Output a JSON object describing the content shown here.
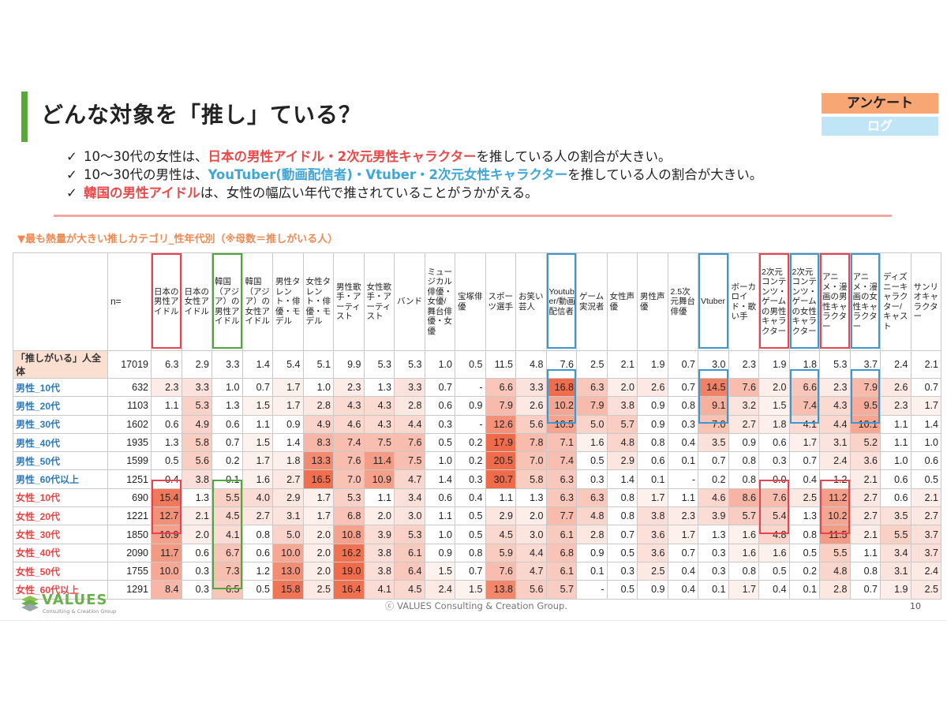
{
  "title": "どんな対象を「推し」ている？",
  "tags": {
    "primary": "アンケート",
    "secondary": "ログ"
  },
  "bullets": [
    {
      "check": "✓",
      "parts": [
        {
          "text": "10～30代の女性は、",
          "style": ""
        },
        {
          "text": "日本の男性アイドル・2次元男性キャラクター",
          "style": "red"
        },
        {
          "text": "を推している人の割合が大きい。",
          "style": ""
        }
      ]
    },
    {
      "check": "✓",
      "parts": [
        {
          "text": "10～30代の男性は、",
          "style": ""
        },
        {
          "text": "YouTuber(動画配信者)・Vtuber・2次元女性キャラクター",
          "style": "blue"
        },
        {
          "text": "を推している人の割合が大きい。",
          "style": ""
        }
      ]
    },
    {
      "check": "✓",
      "parts": [
        {
          "text": "韓国の男性アイドル",
          "style": "red"
        },
        {
          "text": "は、女性の幅広い年代で推されていることがうかがえる。",
          "style": ""
        }
      ]
    }
  ],
  "subtitle": "▼最も熱量が大きい推しカテゴリ_性年代別（※母数＝推しがいる人）",
  "table": {
    "n_label": "n=",
    "columns": [
      "日本の男性アイドル",
      "日本の女性アイドル",
      "韓国（アジア）の男性アイドル",
      "韓国（アジア）の女性アイドル",
      "男性タレント・俳優・モデル",
      "女性タレント・俳優・モデル",
      "男性歌手・アーティスト",
      "女性歌手・アーティスト",
      "バンド",
      "ミュージカル俳優・女優/舞台俳優・女優",
      "宝塚俳優",
      "スポーツ選手",
      "お笑い芸人",
      "Youtuber/動画配信者",
      "ゲーム実況者",
      "女性声優",
      "男性声優",
      "2.5次元舞台俳優",
      "Vtuber",
      "ボーカロイド・歌い手",
      "2次元コンテンツ・ゲームの男性キャラクター",
      "2次元コンテンツ・ゲームの女性キャラクター",
      "アニメ・漫画の男性キャラクター",
      "アニメ・漫画の女性キャラクター",
      "ディズニーキャラクター/キャスト",
      "サンリオキャラクター"
    ],
    "rows": [
      {
        "label": "「推しがいる」人全体",
        "group": "total",
        "n": "17019",
        "values": [
          "6.3",
          "2.9",
          "3.3",
          "1.4",
          "5.4",
          "5.1",
          "9.9",
          "5.3",
          "5.3",
          "1.0",
          "0.5",
          "11.5",
          "4.8",
          "7.6",
          "2.5",
          "2.1",
          "1.9",
          "0.7",
          "3.0",
          "2.3",
          "1.9",
          "1.8",
          "5.3",
          "3.7",
          "2.4",
          "2.1"
        ]
      },
      {
        "label": "男性_10代",
        "group": "male",
        "n": "632",
        "values": [
          "2.3",
          "3.3",
          "1.0",
          "0.7",
          "1.7",
          "1.0",
          "2.3",
          "1.3",
          "3.3",
          "0.7",
          "-",
          "6.6",
          "3.3",
          "16.8",
          "6.3",
          "2.0",
          "2.6",
          "0.7",
          "14.5",
          "7.6",
          "2.0",
          "6.6",
          "2.3",
          "7.9",
          "2.6",
          "0.7"
        ]
      },
      {
        "label": "男性_20代",
        "group": "male",
        "n": "1103",
        "values": [
          "1.1",
          "5.3",
          "1.3",
          "1.5",
          "1.7",
          "2.8",
          "4.3",
          "4.3",
          "2.8",
          "0.6",
          "0.9",
          "7.9",
          "2.6",
          "10.2",
          "7.9",
          "3.8",
          "0.9",
          "0.8",
          "9.1",
          "3.2",
          "1.5",
          "7.4",
          "4.3",
          "9.5",
          "2.3",
          "1.7"
        ]
      },
      {
        "label": "男性_30代",
        "group": "male",
        "n": "1602",
        "values": [
          "0.6",
          "4.9",
          "0.6",
          "1.1",
          "0.9",
          "4.9",
          "4.6",
          "4.3",
          "4.4",
          "0.3",
          "-",
          "12.6",
          "5.6",
          "10.5",
          "5.0",
          "5.7",
          "0.9",
          "0.3",
          "7.0",
          "2.7",
          "1.8",
          "4.1",
          "4.4",
          "10.1",
          "1.1",
          "1.4"
        ]
      },
      {
        "label": "男性_40代",
        "group": "male",
        "n": "1935",
        "values": [
          "1.3",
          "5.8",
          "0.7",
          "1.5",
          "1.4",
          "8.3",
          "7.4",
          "7.5",
          "7.6",
          "0.5",
          "0.2",
          "17.9",
          "7.8",
          "7.1",
          "1.6",
          "4.8",
          "0.8",
          "0.4",
          "3.5",
          "0.9",
          "0.6",
          "1.7",
          "3.1",
          "5.2",
          "1.1",
          "1.0"
        ]
      },
      {
        "label": "男性_50代",
        "group": "male",
        "n": "1599",
        "values": [
          "0.5",
          "5.6",
          "0.2",
          "1.7",
          "1.8",
          "13.3",
          "7.6",
          "11.4",
          "7.5",
          "1.0",
          "0.2",
          "20.5",
          "7.0",
          "7.4",
          "0.5",
          "2.9",
          "0.6",
          "0.1",
          "0.7",
          "0.8",
          "0.3",
          "0.7",
          "2.4",
          "3.6",
          "1.0",
          "0.6"
        ]
      },
      {
        "label": "男性_60代以上",
        "group": "male",
        "n": "1251",
        "values": [
          "0.4",
          "3.8",
          "0.1",
          "1.6",
          "2.7",
          "16.5",
          "7.0",
          "10.9",
          "4.7",
          "1.4",
          "0.3",
          "30.7",
          "5.8",
          "6.3",
          "0.3",
          "1.4",
          "0.1",
          "-",
          "0.2",
          "0.8",
          "0.0",
          "0.4",
          "1.2",
          "2.1",
          "0.6",
          "0.5"
        ]
      },
      {
        "label": "女性_10代",
        "group": "female",
        "n": "690",
        "values": [
          "15.4",
          "1.3",
          "5.5",
          "4.0",
          "2.9",
          "1.7",
          "5.3",
          "1.1",
          "3.4",
          "0.6",
          "0.4",
          "1.1",
          "1.3",
          "6.3",
          "6.3",
          "0.8",
          "1.7",
          "1.1",
          "4.6",
          "8.6",
          "7.6",
          "2.5",
          "11.2",
          "2.7",
          "0.6",
          "2.1"
        ]
      },
      {
        "label": "女性_20代",
        "group": "female",
        "n": "1221",
        "values": [
          "12.7",
          "2.1",
          "4.5",
          "2.7",
          "3.1",
          "1.7",
          "6.8",
          "2.0",
          "3.0",
          "1.1",
          "0.5",
          "2.9",
          "2.0",
          "7.7",
          "4.8",
          "0.8",
          "3.8",
          "2.3",
          "3.9",
          "5.7",
          "5.4",
          "1.3",
          "10.2",
          "2.7",
          "3.5",
          "2.7"
        ]
      },
      {
        "label": "女性_30代",
        "group": "female",
        "n": "1850",
        "values": [
          "10.9",
          "2.0",
          "4.1",
          "0.8",
          "5.0",
          "2.0",
          "10.8",
          "3.9",
          "5.3",
          "1.0",
          "0.5",
          "4.5",
          "3.0",
          "6.1",
          "2.8",
          "0.7",
          "3.6",
          "1.7",
          "1.3",
          "1.6",
          "4.8",
          "0.8",
          "11.5",
          "2.1",
          "5.5",
          "3.7"
        ]
      },
      {
        "label": "女性_40代",
        "group": "female",
        "n": "2090",
        "values": [
          "11.7",
          "0.6",
          "6.7",
          "0.6",
          "10.0",
          "2.0",
          "16.2",
          "3.8",
          "6.1",
          "0.9",
          "0.8",
          "5.9",
          "4.4",
          "6.8",
          "0.9",
          "0.5",
          "3.6",
          "0.7",
          "0.3",
          "1.6",
          "1.6",
          "0.5",
          "5.5",
          "1.1",
          "3.4",
          "3.7"
        ]
      },
      {
        "label": "女性_50代",
        "group": "female",
        "n": "1755",
        "values": [
          "10.0",
          "0.3",
          "7.3",
          "1.2",
          "13.0",
          "2.0",
          "19.0",
          "3.8",
          "6.4",
          "1.5",
          "0.7",
          "7.6",
          "4.7",
          "6.1",
          "0.1",
          "0.3",
          "2.5",
          "0.4",
          "0.3",
          "0.8",
          "0.5",
          "0.2",
          "4.8",
          "0.8",
          "3.1",
          "2.4"
        ]
      },
      {
        "label": "女性_60代以上",
        "group": "female",
        "n": "1291",
        "values": [
          "8.4",
          "0.3",
          "6.5",
          "0.5",
          "15.8",
          "2.5",
          "16.4",
          "4.1",
          "4.5",
          "2.4",
          "1.5",
          "13.8",
          "5.6",
          "5.7",
          "-",
          "0.5",
          "0.9",
          "0.4",
          "0.1",
          "1.7",
          "0.4",
          "0.1",
          "2.8",
          "0.7",
          "1.9",
          "2.5"
        ]
      }
    ]
  },
  "colors": {
    "accent_green": "#5aa83a",
    "heat_max": "#ef6b4a",
    "box_red": "#e8434f",
    "box_green": "#4fa83a",
    "box_blue": "#3f97d0"
  },
  "logo": {
    "name": "VALUES",
    "sub": "Consulting & Creation Group"
  },
  "copyright": "ⓒ VALUES Consulting & Creation Group.",
  "page_number": "10"
}
